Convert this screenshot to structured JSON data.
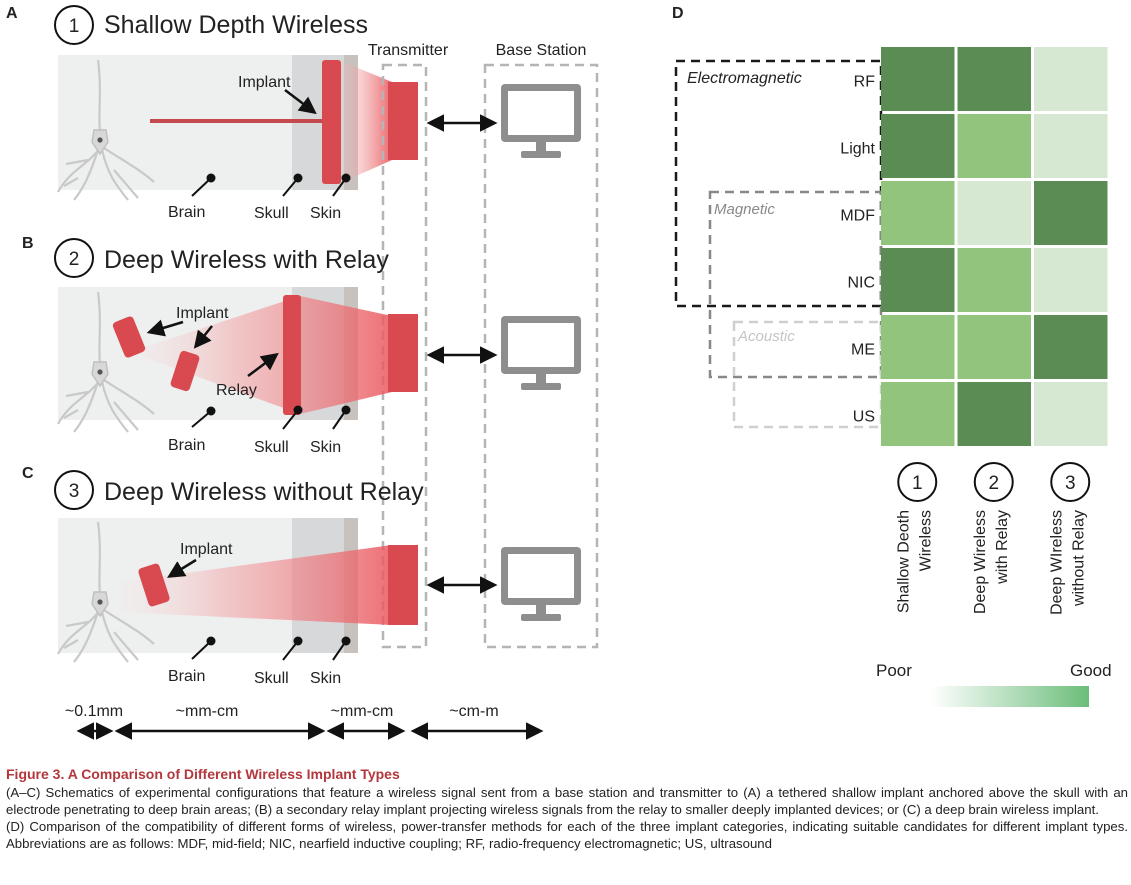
{
  "panels": {
    "A": {
      "letter": "A",
      "number": "1",
      "title": "Shallow Depth Wireless",
      "transmitter": "Transmitter",
      "base_station": "Base Station",
      "implant": "Implant",
      "brain": "Brain",
      "skull": "Skull",
      "skin": "Skin"
    },
    "B": {
      "letter": "B",
      "number": "2",
      "title": "Deep Wireless with Relay",
      "implant": "Implant",
      "relay": "Relay",
      "brain": "Brain",
      "skull": "Skull",
      "skin": "Skin"
    },
    "C": {
      "letter": "C",
      "number": "3",
      "title": "Deep Wireless without Relay",
      "implant": "Implant",
      "brain": "Brain",
      "skull": "Skull",
      "skin": "Skin"
    }
  },
  "scale": [
    "~0.1mm",
    "~mm-cm",
    "~mm-cm",
    "~cm-m"
  ],
  "chart_data": {
    "type": "heatmap",
    "panel_letter": "D",
    "rows": [
      "RF",
      "Light",
      "MDF",
      "NIC",
      "ME",
      "US"
    ],
    "columns": [
      {
        "number": "1",
        "line1": "Shallow Deoth",
        "line2": "Wireless"
      },
      {
        "number": "2",
        "line1": "Deep Wireless",
        "line2": "with Relay"
      },
      {
        "number": "3",
        "line1": "Deep WIreless",
        "line2": "without Relay"
      }
    ],
    "values": [
      [
        3,
        3,
        1
      ],
      [
        3,
        2,
        1
      ],
      [
        2,
        1,
        3
      ],
      [
        3,
        2,
        1
      ],
      [
        2,
        2,
        3
      ],
      [
        2,
        3,
        1
      ]
    ],
    "scale_levels": 3,
    "groups": [
      "Electromagnetic",
      "Magnetic",
      "Acoustic"
    ],
    "legend": {
      "low": "Poor",
      "high": "Good"
    },
    "colors": {
      "level1": "#d6e7d2",
      "level2": "#93c47d",
      "level3": "#5b8c53",
      "group_em": "#1a1a1a",
      "group_mag": "#888888",
      "group_ac": "#cfcfcf"
    }
  },
  "caption": {
    "title": "Figure 3.  A Comparison of Different Wireless Implant Types",
    "p1": "(A–C) Schematics of experimental configurations that feature a wireless signal sent from a base station and transmitter to (A) a tethered shallow implant anchored above the skull with an electrode penetrating to deep brain areas; (B) a secondary relay implant projecting wireless signals from the relay to smaller deeply implanted devices; or (C) a deep brain wireless implant.",
    "p2": "(D) Comparison of the compatibility of different forms of wireless, power-transfer methods for each of the three implant categories, indicating suitable candidates for different implant types. Abbreviations are as follows: MDF, mid-field; NIC, nearfield inductive coupling; RF, radio-frequency electromagnetic; US, ultrasound"
  }
}
